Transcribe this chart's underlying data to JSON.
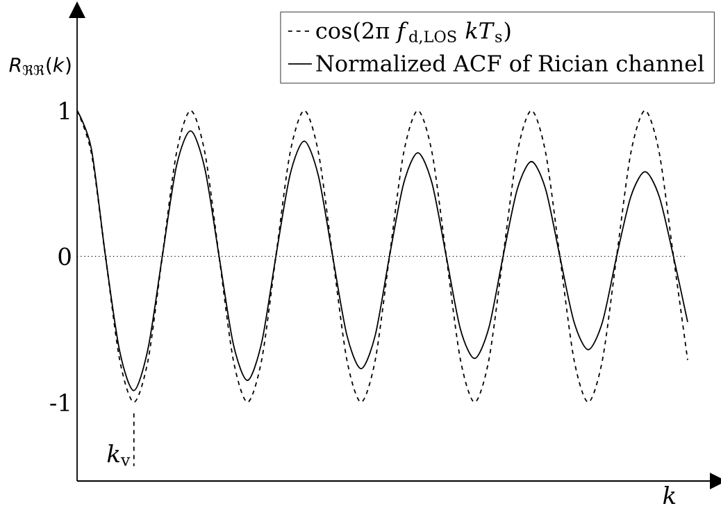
{
  "chart_data": {
    "type": "line",
    "ylabel": "*R*$_{ℜℜ}$(*k*)",
    "xlabel": "k",
    "categories": [
      null,
      null,
      null,
      null,
      null,
      null,
      null,
      null,
      null,
      null,
      null,
      null,
      null,
      null,
      null,
      null,
      null,
      null,
      null,
      null,
      null,
      null,
      null,
      null,
      null,
      null,
      null,
      null,
      null,
      null,
      null,
      null,
      null,
      null,
      null,
      null,
      null,
      null,
      null,
      null,
      null,
      null,
      null,
      null
    ],
    "series": [
      {
        "name": "cos(2π *f*$_{d,LOS}$ *kT*$_{s}$)",
        "color": "#000000",
        "line_style": "dashed",
        "values": [
          1,
          0.71,
          0,
          -0.71,
          -1,
          -0.71,
          0,
          0.71,
          1,
          0.71,
          0,
          -0.71,
          -1,
          -0.71,
          0,
          0.71,
          1,
          0.71,
          0,
          -0.71,
          -1,
          -0.71,
          0,
          0.71,
          1,
          0.71,
          0,
          -0.71,
          -1,
          -0.71,
          0,
          0.71,
          1,
          0.71,
          0,
          -0.71,
          -1,
          -0.71,
          0,
          0.71,
          1,
          0.71,
          0,
          -0.71
        ]
      },
      {
        "name": "Normalized ACF of Rician channel",
        "color": "#000000",
        "line_style": "solid",
        "values": [
          1,
          0.74,
          0,
          -0.65,
          -0.92,
          -0.63,
          0,
          0.62,
          0.86,
          0.6,
          0,
          -0.6,
          -0.85,
          -0.59,
          0,
          0.56,
          0.79,
          0.55,
          0,
          -0.54,
          -0.77,
          -0.54,
          0,
          0.5,
          0.71,
          0.5,
          0,
          -0.5,
          -0.7,
          -0.49,
          0,
          0.46,
          0.65,
          0.46,
          0,
          -0.45,
          -0.64,
          -0.45,
          0,
          0.41,
          0.58,
          0.41,
          0,
          -0.45
        ]
      }
    ],
    "ylim": [
      -1.54,
      1.71
    ],
    "yticks": [
      1,
      0,
      {
        "value": -1,
        "label": "-1"
      }
    ],
    "ref_lines": [
      {
        "axis": "y",
        "value": 0,
        "line_style": "dotted"
      }
    ],
    "annotations": [
      "*k*$_{v}$"
    ],
    "legend": "top right",
    "grid": false,
    "marker": "none"
  }
}
